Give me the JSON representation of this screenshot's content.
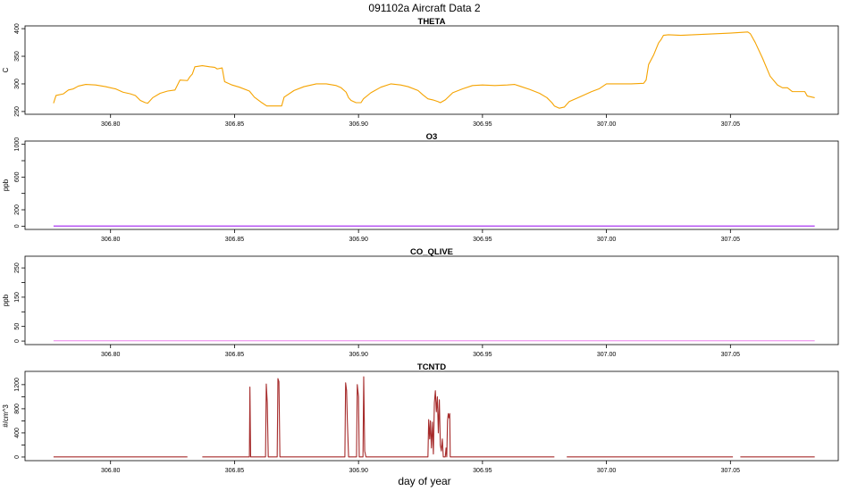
{
  "figure": {
    "title": "091102a   Aircraft Data 2",
    "xlabel": "day of year"
  },
  "chart_data": [
    {
      "type": "line",
      "title": "THETA",
      "xlabel": "",
      "ylabel": "C",
      "color": "#f5a300",
      "xlim": [
        306.7655,
        307.0935
      ],
      "ylim": [
        245,
        405
      ],
      "x_ticks": [
        306.8,
        306.85,
        306.9,
        306.95,
        307.0,
        307.05
      ],
      "x_tick_labels": [
        "306.80",
        "306.85",
        "306.90",
        "306.95",
        "307.00",
        "307.05"
      ],
      "y_ticks": [
        250,
        300,
        350,
        400
      ],
      "y_tick_labels": [
        "250",
        "300",
        "350",
        "400"
      ],
      "grid": false,
      "series": [
        {
          "points": [
            [
              306.777,
              265
            ],
            [
              306.778,
              279
            ],
            [
              306.781,
              282
            ],
            [
              306.783,
              289
            ],
            [
              306.785,
              291
            ],
            [
              306.787,
              296
            ],
            [
              306.79,
              299
            ],
            [
              306.794,
              298
            ],
            [
              306.798,
              295
            ],
            [
              306.802,
              291
            ],
            [
              306.805,
              285
            ],
            [
              306.808,
              282
            ],
            [
              306.81,
              279
            ],
            [
              306.812,
              270
            ],
            [
              306.814,
              266
            ],
            [
              306.815,
              265
            ],
            [
              306.817,
              275
            ],
            [
              306.82,
              283
            ],
            [
              306.823,
              287
            ],
            [
              306.826,
              289
            ],
            [
              306.828,
              307
            ],
            [
              306.831,
              306
            ],
            [
              306.832,
              313
            ],
            [
              306.833,
              318
            ],
            [
              306.834,
              331
            ],
            [
              306.837,
              333
            ],
            [
              306.84,
              331
            ],
            [
              306.842,
              330
            ],
            [
              306.843,
              327
            ],
            [
              306.845,
              329
            ],
            [
              306.846,
              304
            ],
            [
              306.849,
              298
            ],
            [
              306.852,
              294
            ],
            [
              306.856,
              287
            ],
            [
              306.858,
              276
            ],
            [
              306.861,
              266
            ],
            [
              306.863,
              260
            ],
            [
              306.869,
              260
            ],
            [
              306.87,
              276
            ],
            [
              306.874,
              288
            ],
            [
              306.878,
              295
            ],
            [
              306.883,
              300
            ],
            [
              306.887,
              300
            ],
            [
              306.891,
              297
            ],
            [
              306.893,
              293
            ],
            [
              306.895,
              285
            ],
            [
              306.896,
              275
            ],
            [
              306.897,
              270
            ],
            [
              306.899,
              266
            ],
            [
              306.901,
              266
            ],
            [
              306.902,
              273
            ],
            [
              306.905,
              284
            ],
            [
              306.909,
              294
            ],
            [
              306.913,
              300
            ],
            [
              306.917,
              298
            ],
            [
              306.92,
              295
            ],
            [
              306.924,
              288
            ],
            [
              306.926,
              280
            ],
            [
              306.928,
              273
            ],
            [
              306.93,
              271
            ],
            [
              306.932,
              268
            ],
            [
              306.933,
              266
            ],
            [
              306.935,
              271
            ],
            [
              306.938,
              284
            ],
            [
              306.942,
              291
            ],
            [
              306.946,
              297
            ],
            [
              306.95,
              298
            ],
            [
              306.955,
              297
            ],
            [
              306.96,
              298
            ],
            [
              306.963,
              299
            ],
            [
              306.965,
              296
            ],
            [
              306.969,
              290
            ],
            [
              306.973,
              283
            ],
            [
              306.976,
              275
            ],
            [
              306.978,
              266
            ],
            [
              306.979,
              260
            ],
            [
              306.981,
              256
            ],
            [
              306.983,
              258
            ],
            [
              306.985,
              268
            ],
            [
              306.989,
              276
            ],
            [
              306.994,
              286
            ],
            [
              306.997,
              291
            ],
            [
              307.0,
              300
            ],
            [
              307.005,
              300
            ],
            [
              307.01,
              300
            ],
            [
              307.015,
              301
            ],
            [
              307.016,
              307
            ],
            [
              307.017,
              335
            ],
            [
              307.019,
              352
            ],
            [
              307.021,
              374
            ],
            [
              307.022,
              380
            ],
            [
              307.023,
              388
            ],
            [
              307.025,
              389
            ],
            [
              307.03,
              388
            ],
            [
              307.04,
              390
            ],
            [
              307.05,
              392
            ],
            [
              307.057,
              394
            ],
            [
              307.058,
              391
            ],
            [
              307.06,
              375
            ],
            [
              307.063,
              346
            ],
            [
              307.066,
              314
            ],
            [
              307.069,
              298
            ],
            [
              307.071,
              293
            ],
            [
              307.073,
              293
            ],
            [
              307.075,
              286
            ],
            [
              307.08,
              286
            ],
            [
              307.081,
              278
            ],
            [
              307.084,
              275
            ]
          ]
        }
      ]
    },
    {
      "type": "line",
      "title": "O3",
      "xlabel": "",
      "ylabel": "ppb",
      "color": "#a020f0",
      "xlim": [
        306.7655,
        307.0935
      ],
      "ylim": [
        -40,
        1040
      ],
      "x_ticks": [
        306.8,
        306.85,
        306.9,
        306.95,
        307.0,
        307.05
      ],
      "x_tick_labels": [
        "306.80",
        "306.85",
        "306.90",
        "306.95",
        "307.00",
        "307.05"
      ],
      "y_ticks": [
        0,
        200,
        400,
        600,
        800,
        1000
      ],
      "y_tick_labels": [
        "0",
        "200",
        "",
        "600",
        "",
        "1000"
      ],
      "grid": false,
      "series": [
        {
          "points": [
            [
              306.777,
              2
            ],
            [
              307.084,
              2
            ]
          ]
        }
      ]
    },
    {
      "type": "line",
      "title": "CO_QLIVE",
      "xlabel": "",
      "ylabel": "ppb",
      "color": "#ee82ee",
      "xlim": [
        306.7655,
        307.0935
      ],
      "ylim": [
        -12,
        290
      ],
      "x_ticks": [
        306.8,
        306.85,
        306.9,
        306.95,
        307.0,
        307.05
      ],
      "x_tick_labels": [
        "306.80",
        "306.85",
        "306.90",
        "306.95",
        "307.00",
        "307.05"
      ],
      "y_ticks": [
        0,
        50,
        100,
        150,
        200,
        250
      ],
      "y_tick_labels": [
        "0",
        "50",
        "",
        "150",
        "",
        "250"
      ],
      "grid": false,
      "series": [
        {
          "points": [
            [
              306.777,
              1
            ],
            [
              307.084,
              1
            ]
          ]
        }
      ]
    },
    {
      "type": "line",
      "title": "TCNTD",
      "xlabel": "day of year",
      "ylabel": "#/cm^3",
      "color": "#a52a2a",
      "xlim": [
        306.7655,
        307.0935
      ],
      "ylim": [
        -60,
        1420
      ],
      "x_ticks": [
        306.8,
        306.85,
        306.9,
        306.95,
        307.0,
        307.05
      ],
      "x_tick_labels": [
        "306.80",
        "306.85",
        "306.90",
        "306.95",
        "307.00",
        "307.05"
      ],
      "y_ticks": [
        0,
        200,
        400,
        600,
        800,
        1000,
        1200
      ],
      "y_tick_labels": [
        "0",
        "",
        "400",
        "",
        "800",
        "",
        "1200"
      ],
      "grid": false,
      "series": [
        {
          "segments": [
            [
              [
                306.777,
                2
              ],
              [
                306.831,
                2
              ]
            ],
            [
              [
                306.837,
                2
              ],
              [
                306.856,
                2
              ],
              [
                306.8562,
                1160
              ],
              [
                306.8565,
                2
              ],
              [
                306.8625,
                2
              ],
              [
                306.8628,
                1210
              ],
              [
                306.8632,
                900
              ],
              [
                306.8636,
                2
              ],
              [
                306.8672,
                2
              ],
              [
                306.8675,
                1300
              ],
              [
                306.8679,
                1250
              ],
              [
                306.8683,
                2
              ],
              [
                306.8945,
                2
              ],
              [
                306.8948,
                1230
              ],
              [
                306.8952,
                1100
              ],
              [
                306.8955,
                600
              ],
              [
                306.896,
                2
              ],
              [
                306.8992,
                2
              ],
              [
                306.8995,
                1200
              ],
              [
                306.9,
                1000
              ],
              [
                306.9003,
                2
              ],
              [
                306.9018,
                2
              ],
              [
                306.9021,
                1330
              ],
              [
                306.9025,
                100
              ],
              [
                306.903,
                2
              ],
              [
                306.928,
                2
              ],
              [
                306.9283,
                620
              ],
              [
                306.9287,
                300
              ],
              [
                306.929,
                600
              ],
              [
                306.9294,
                150
              ],
              [
                306.9298,
                580
              ],
              [
                306.9302,
                50
              ],
              [
                306.9306,
                900
              ],
              [
                306.931,
                1100
              ],
              [
                306.9314,
                750
              ],
              [
                306.9318,
                1000
              ],
              [
                306.9322,
                400
              ],
              [
                306.9326,
                950
              ],
              [
                306.933,
                200
              ],
              [
                306.9334,
                100
              ],
              [
                306.9338,
                300
              ],
              [
                306.9342,
                2
              ],
              [
                306.935,
                2
              ],
              [
                306.9353,
                150
              ],
              [
                306.9356,
                2
              ],
              [
                306.9359,
                600
              ],
              [
                306.9362,
                720
              ],
              [
                306.9365,
                650
              ],
              [
                306.9368,
                720
              ],
              [
                306.937,
                2
              ],
              [
                306.979,
                2
              ]
            ],
            [
              [
                306.984,
                2
              ],
              [
                307.051,
                2
              ]
            ],
            [
              [
                307.054,
                2
              ],
              [
                307.084,
                2
              ]
            ]
          ]
        }
      ]
    }
  ]
}
